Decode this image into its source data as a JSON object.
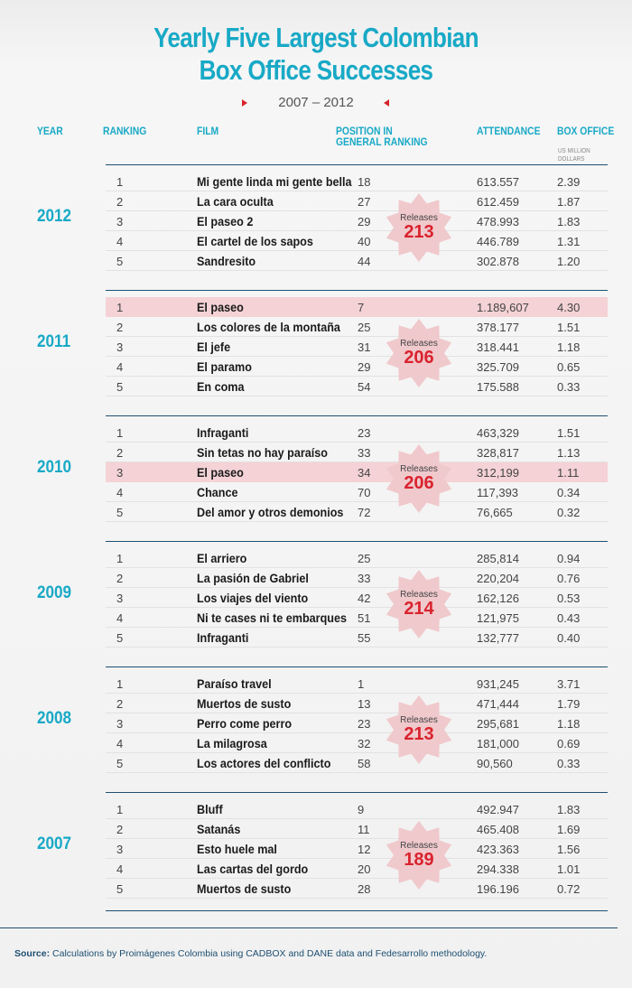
{
  "title_line1": "Yearly Five Largest Colombian",
  "title_line2": "Box Office Successes",
  "subtitle": "2007 – 2012",
  "headers": {
    "year": "YEAR",
    "ranking": "RANKING",
    "film": "FILM",
    "position_line1": "POSITION IN",
    "position_line2": "GENERAL RANKING",
    "attendance": "ATTENDANCE",
    "box_office": "BOX OFFICE",
    "box_office_unit_line1": "US MILLION",
    "box_office_unit_line2": "DOLLARS"
  },
  "releases_label": "Releases",
  "accent_color": "#18a9c6",
  "highlight_color": "#f4d2d5",
  "years": [
    {
      "year": "2012",
      "releases": "213",
      "rows": [
        {
          "rank": "1",
          "film": "Mi gente linda mi gente bella",
          "position": "18",
          "attendance": "613.557",
          "box_office": "2.39",
          "highlight": false
        },
        {
          "rank": "2",
          "film": "La cara oculta",
          "position": "27",
          "attendance": "612.459",
          "box_office": "1.87",
          "highlight": false
        },
        {
          "rank": "3",
          "film": "El paseo 2",
          "position": "29",
          "attendance": "478.993",
          "box_office": "1.83",
          "highlight": false
        },
        {
          "rank": "4",
          "film": "El cartel de los sapos",
          "position": "40",
          "attendance": "446.789",
          "box_office": "1.31",
          "highlight": false
        },
        {
          "rank": "5",
          "film": "Sandresito",
          "position": "44",
          "attendance": "302.878",
          "box_office": "1.20",
          "highlight": false
        }
      ]
    },
    {
      "year": "2011",
      "releases": "206",
      "rows": [
        {
          "rank": "1",
          "film": "El paseo",
          "position": "7",
          "attendance": "1.189,607",
          "box_office": "4.30",
          "highlight": true
        },
        {
          "rank": "2",
          "film": "Los colores de la montaña",
          "position": "25",
          "attendance": "378.177",
          "box_office": "1.51",
          "highlight": false
        },
        {
          "rank": "3",
          "film": "El jefe",
          "position": "31",
          "attendance": "318.441",
          "box_office": "1.18",
          "highlight": false
        },
        {
          "rank": "4",
          "film": "El paramo",
          "position": "29",
          "attendance": "325.709",
          "box_office": "0.65",
          "highlight": false
        },
        {
          "rank": "5",
          "film": "En coma",
          "position": "54",
          "attendance": "175.588",
          "box_office": "0.33",
          "highlight": false
        }
      ]
    },
    {
      "year": "2010",
      "releases": "206",
      "rows": [
        {
          "rank": "1",
          "film": "Infraganti",
          "position": "23",
          "attendance": "463,329",
          "box_office": "1.51",
          "highlight": false
        },
        {
          "rank": "2",
          "film": "Sin tetas no hay paraíso",
          "position": "33",
          "attendance": "328,817",
          "box_office": "1.13",
          "highlight": false
        },
        {
          "rank": "3",
          "film": "El paseo",
          "position": "34",
          "attendance": "312,199",
          "box_office": "1.11",
          "highlight": true
        },
        {
          "rank": "4",
          "film": "Chance",
          "position": "70",
          "attendance": "117,393",
          "box_office": "0.34",
          "highlight": false
        },
        {
          "rank": "5",
          "film": "Del amor y otros demonios",
          "position": "72",
          "attendance": "76,665",
          "box_office": "0.32",
          "highlight": false
        }
      ]
    },
    {
      "year": "2009",
      "releases": "214",
      "rows": [
        {
          "rank": "1",
          "film": "El arriero",
          "position": "25",
          "attendance": "285,814",
          "box_office": "0.94",
          "highlight": false
        },
        {
          "rank": "2",
          "film": "La pasión de Gabriel",
          "position": "33",
          "attendance": "220,204",
          "box_office": "0.76",
          "highlight": false
        },
        {
          "rank": "3",
          "film": "Los viajes del viento",
          "position": "42",
          "attendance": "162,126",
          "box_office": "0.53",
          "highlight": false
        },
        {
          "rank": "4",
          "film": "Ni te cases ni te embarques",
          "position": "51",
          "attendance": "121,975",
          "box_office": "0.43",
          "highlight": false
        },
        {
          "rank": "5",
          "film": "Infraganti",
          "position": "55",
          "attendance": "132,777",
          "box_office": "0.40",
          "highlight": false
        }
      ]
    },
    {
      "year": "2008",
      "releases": "213",
      "rows": [
        {
          "rank": "1",
          "film": "Paraíso travel",
          "position": "1",
          "attendance": "931,245",
          "box_office": "3.71",
          "highlight": false
        },
        {
          "rank": "2",
          "film": "Muertos de susto",
          "position": "13",
          "attendance": "471,444",
          "box_office": "1.79",
          "highlight": false
        },
        {
          "rank": "3",
          "film": "Perro come perro",
          "position": "23",
          "attendance": "295,681",
          "box_office": "1.18",
          "highlight": false
        },
        {
          "rank": "4",
          "film": "La milagrosa",
          "position": "32",
          "attendance": "181,000",
          "box_office": "0.69",
          "highlight": false
        },
        {
          "rank": "5",
          "film": "Los actores del conflicto",
          "position": "58",
          "attendance": "90,560",
          "box_office": "0.33",
          "highlight": false
        }
      ]
    },
    {
      "year": "2007",
      "releases": "189",
      "rows": [
        {
          "rank": "1",
          "film": "Bluff",
          "position": "9",
          "attendance": "492.947",
          "box_office": "1.83",
          "highlight": false
        },
        {
          "rank": "2",
          "film": "Satanás",
          "position": "11",
          "attendance": "465.408",
          "box_office": "1.69",
          "highlight": false
        },
        {
          "rank": "3",
          "film": "Esto huele mal",
          "position": "12",
          "attendance": "423.363",
          "box_office": "1.56",
          "highlight": false
        },
        {
          "rank": "4",
          "film": "Las cartas del gordo",
          "position": "20",
          "attendance": "294.338",
          "box_office": "1.01",
          "highlight": false
        },
        {
          "rank": "5",
          "film": "Muertos de susto",
          "position": "28",
          "attendance": "196.196",
          "box_office": "0.72",
          "highlight": false
        }
      ]
    }
  ],
  "source_label": "Source:",
  "source_text": "Calculations by Proimágenes Colombia using CADBOX and DANE data and Fedesarrollo methodology."
}
